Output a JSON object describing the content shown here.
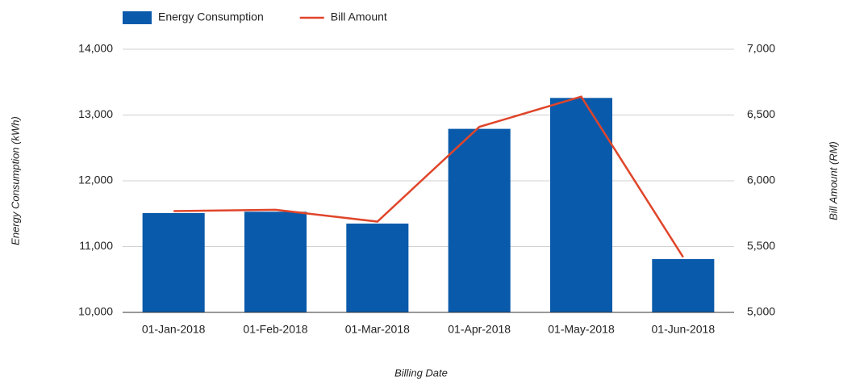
{
  "chart_data": {
    "type": "bar_line",
    "x_label": "Billing Date",
    "y_label": "Energy Consumption (kWh)",
    "y2_label": "Bill Amount (RM)",
    "categories": [
      "01-Jan-2018",
      "01-Feb-2018",
      "01-Mar-2018",
      "01-Apr-2018",
      "01-May-2018",
      "01-Jun-2018"
    ],
    "series": [
      {
        "name": "Energy Consumption",
        "type": "bar",
        "color": "#0a5aab",
        "values": [
          11510,
          11530,
          11350,
          12790,
          13260,
          10810
        ]
      },
      {
        "name": "Bill Amount",
        "type": "line",
        "axis": "y2",
        "color": "#e0452a",
        "values": [
          5770,
          5780,
          5690,
          6410,
          6640,
          5420
        ]
      }
    ],
    "ylim": [
      10000,
      14000
    ],
    "yticks": [
      {
        "value": 10000,
        "label": "10,000"
      },
      {
        "value": 11000,
        "label": "11,000"
      },
      {
        "value": 12000,
        "label": "12,000"
      },
      {
        "value": 13000,
        "label": "13,000"
      },
      {
        "value": 14000,
        "label": "14,000"
      }
    ],
    "y2lim": [
      5000,
      7000
    ],
    "y2ticks": [
      {
        "value": 5000,
        "label": "5,000"
      },
      {
        "value": 5500,
        "label": "5,500"
      },
      {
        "value": 6000,
        "label": "6,000"
      },
      {
        "value": 6500,
        "label": "6,500"
      },
      {
        "value": 7000,
        "label": "7,000"
      }
    ],
    "grid": true,
    "legend": "top"
  }
}
